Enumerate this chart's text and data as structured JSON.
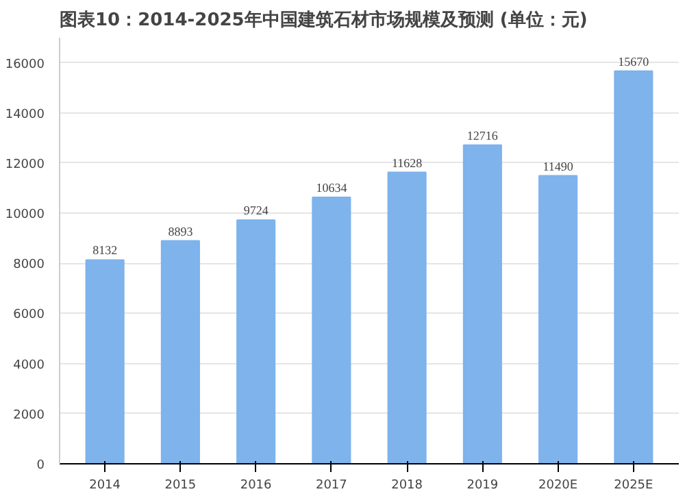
{
  "chart_data": {
    "type": "bar",
    "title": "图表10：2014-2025年中国建筑石材市场规模及预测 (单位：元)",
    "categories": [
      "2014",
      "2015",
      "2016",
      "2017",
      "2018",
      "2019",
      "2020E",
      "2025E"
    ],
    "values": [
      8132,
      8893,
      9724,
      10634,
      11628,
      12716,
      11490,
      15670
    ],
    "color": "#7eb3ec",
    "ylim": [
      0,
      17000
    ],
    "yticks": [
      0,
      2000,
      4000,
      6000,
      8000,
      10000,
      12000,
      14000,
      16000
    ],
    "grid": "y",
    "data_labels": true
  }
}
